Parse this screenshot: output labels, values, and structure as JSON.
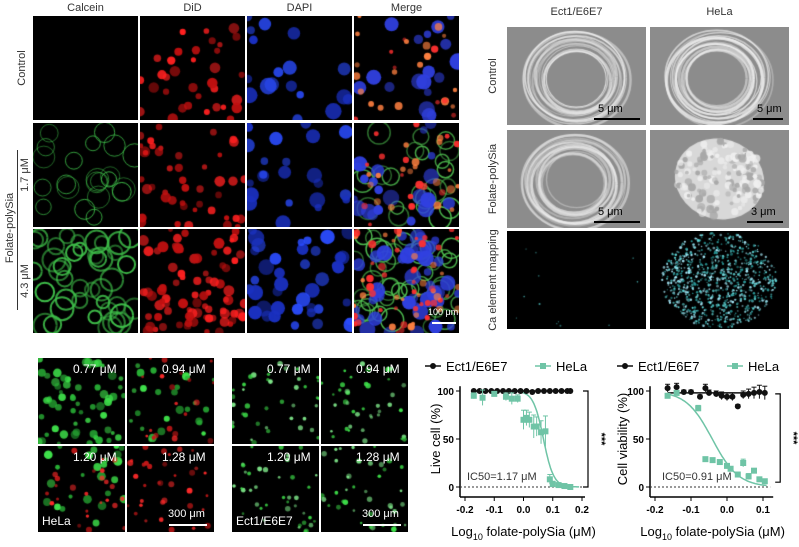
{
  "fluorescence": {
    "columns": [
      "Calcein",
      "DiD",
      "DAPI",
      "Merge"
    ],
    "rows": [
      "Control",
      "1.7 μM",
      "4.3 μM"
    ],
    "group_label": "Folate-polySia",
    "scale_bar": "100 μm"
  },
  "sem": {
    "columns": [
      "Ect1/E6E7",
      "HeLa"
    ],
    "rows": [
      "Control",
      "Folate-polySia",
      "Ca element mapping"
    ],
    "scale_bars": [
      [
        "5 μm",
        "5 μm"
      ],
      [
        "5 μm",
        "3 μm"
      ]
    ]
  },
  "live_dead": [
    {
      "cell_line": "HeLa",
      "concentrations": [
        "0.77 μM",
        "0.94 μM",
        "1.20 μM",
        "1.28 μM"
      ],
      "scale_bar": "300 μm"
    },
    {
      "cell_line": "Ect1/E6E7",
      "concentrations": [
        "0.77 μM",
        "0.94 μM",
        "1.20 μM",
        "1.28 μM"
      ],
      "scale_bar": "300 μm"
    }
  ],
  "colors": {
    "ect1": "#111111",
    "hela": "#6fc4a6"
  },
  "chart_data": [
    {
      "type": "line",
      "xlabel": "Log10 folate-polySia (μM)",
      "ylabel": "Live cell (%)",
      "xlim": [
        -0.2,
        0.2
      ],
      "ylim": [
        0,
        100
      ],
      "xticks": [
        "-0.2",
        "-0.1",
        "0.0",
        "0.1",
        "0.2"
      ],
      "yticks": [
        "0",
        "50",
        "100"
      ],
      "annotation": "IC50=1.17 μM",
      "significance": "***",
      "legend": "top",
      "series": [
        {
          "name": "Ect1/E6E7",
          "x": [
            -0.17,
            -0.15,
            -0.13,
            -0.11,
            -0.09,
            -0.07,
            -0.05,
            -0.03,
            -0.01,
            0.01,
            0.03,
            0.05,
            0.07,
            0.09,
            0.11,
            0.13,
            0.15,
            0.16
          ],
          "y": [
            100,
            100,
            100,
            100,
            100,
            100,
            100,
            100,
            100,
            100,
            99,
            100,
            100,
            100,
            100,
            100,
            100,
            100
          ]
        },
        {
          "name": "HeLa",
          "x": [
            -0.17,
            -0.14,
            -0.1,
            -0.06,
            -0.04,
            -0.02,
            0.0,
            0.01,
            0.02,
            0.035,
            0.045,
            0.06,
            0.075,
            0.09,
            0.1,
            0.12,
            0.14,
            0.16
          ],
          "y": [
            95,
            93,
            97,
            94,
            92,
            92,
            70,
            72,
            70,
            63,
            63,
            57,
            58,
            8,
            3,
            2,
            1,
            0
          ],
          "err": [
            3,
            8,
            2,
            4,
            6,
            4,
            10,
            8,
            8,
            12,
            10,
            12,
            16,
            5,
            3,
            2,
            2,
            1
          ]
        }
      ]
    },
    {
      "type": "line",
      "xlabel": "Log10 folate-polySia (μM)",
      "ylabel": "Cell viability (%)",
      "xlim": [
        -0.2,
        0.12
      ],
      "ylim": [
        0,
        100
      ],
      "xticks": [
        "-0.2",
        "-0.1",
        "0.0",
        "0.1"
      ],
      "yticks": [
        "0",
        "50",
        "100"
      ],
      "annotation": "IC50=0.91 μM",
      "significance": "***",
      "legend": "top",
      "series": [
        {
          "name": "Ect1/E6E7",
          "x": [
            -0.165,
            -0.14,
            -0.12,
            -0.1,
            -0.075,
            -0.06,
            -0.05,
            -0.03,
            -0.015,
            0.0,
            0.015,
            0.03,
            0.045,
            0.06,
            0.075,
            0.09,
            0.105
          ],
          "y": [
            103,
            104,
            99,
            99,
            94,
            103,
            98,
            97,
            95,
            94,
            94,
            84,
            96,
            97,
            98,
            99,
            98
          ],
          "err": [
            4,
            4,
            2,
            2,
            2,
            4,
            3,
            3,
            4,
            4,
            4,
            2,
            4,
            5,
            6,
            7,
            7
          ]
        },
        {
          "name": "HeLa",
          "x": [
            -0.165,
            -0.14,
            -0.08,
            -0.06,
            -0.04,
            -0.02,
            0.0,
            0.01,
            0.03,
            0.045,
            0.06,
            0.075,
            0.09,
            0.105
          ],
          "y": [
            95,
            98,
            82,
            29,
            28,
            26,
            22,
            19,
            13,
            25,
            11,
            17,
            8,
            6
          ],
          "err": [
            2,
            2,
            3,
            2,
            2,
            2,
            2,
            2,
            2,
            4,
            3,
            2,
            2,
            2
          ]
        }
      ]
    }
  ]
}
